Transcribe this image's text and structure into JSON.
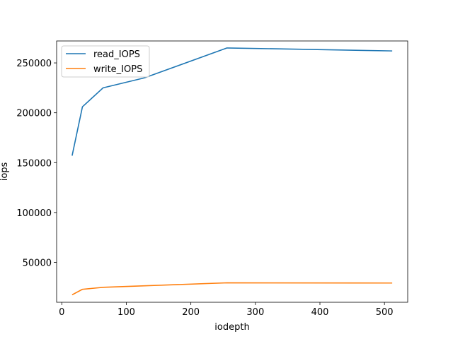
{
  "chart_data": {
    "type": "line",
    "xlabel": "iodepth",
    "ylabel": "iops",
    "xlim": [
      -8,
      536
    ],
    "ylim": [
      10000,
      272000
    ],
    "xticks": [
      0,
      100,
      200,
      300,
      400,
      500
    ],
    "yticks": [
      50000,
      100000,
      150000,
      200000,
      250000
    ],
    "grid": false,
    "legend_position": "top-left",
    "series": [
      {
        "name": "read_IOPS",
        "color": "#1f77b4",
        "x": [
          16,
          32,
          64,
          128,
          256,
          512
        ],
        "y": [
          157000,
          206000,
          225000,
          235000,
          265000,
          262000
        ]
      },
      {
        "name": "write_IOPS",
        "color": "#ff7f0e",
        "x": [
          16,
          32,
          64,
          128,
          256,
          512
        ],
        "y": [
          17500,
          23000,
          25000,
          26500,
          29500,
          29300
        ]
      }
    ]
  }
}
